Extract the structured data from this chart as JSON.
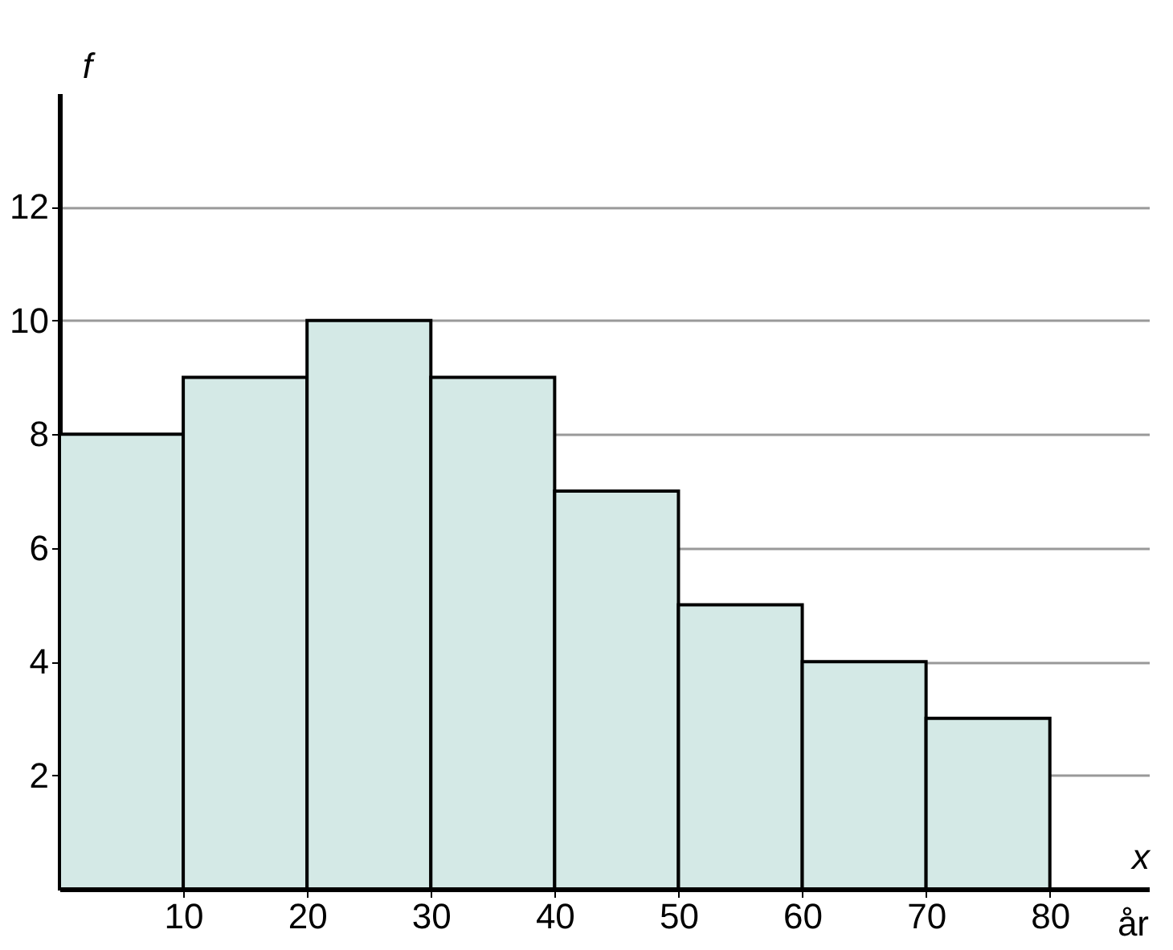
{
  "chart_data": {
    "type": "histogram",
    "bins": [
      0,
      10,
      20,
      30,
      40,
      50,
      60,
      70,
      80
    ],
    "values": [
      8,
      9,
      10,
      9,
      7,
      5,
      4,
      3
    ],
    "color": "#d4e9e6",
    "xlabel": "x",
    "ylabel": "f",
    "annotations": [
      "år"
    ],
    "xlim": [
      0,
      88
    ],
    "ylim": [
      0,
      14
    ],
    "xticks": [
      10,
      20,
      30,
      40,
      50,
      60,
      70,
      80
    ],
    "yticks": [
      2,
      4,
      6,
      8,
      10,
      12
    ],
    "grid": "y"
  }
}
